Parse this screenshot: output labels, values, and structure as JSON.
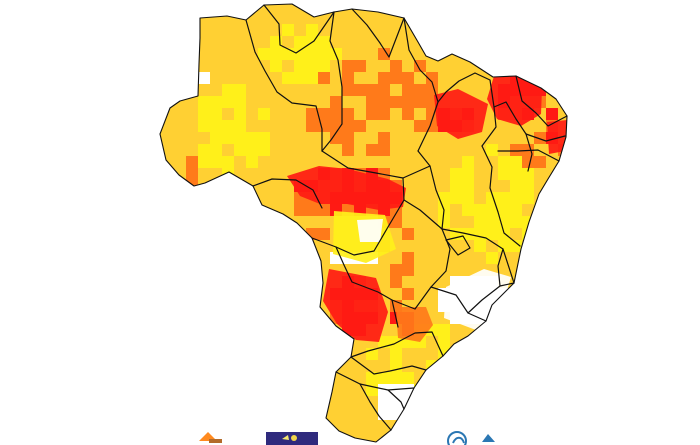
{
  "map": {
    "subject": "Brazil risk map",
    "colors": {
      "background": "#ffffff",
      "white": "#ffffff",
      "yellow": "#fff01a",
      "light_orange": "#ffd033",
      "orange": "#ff7a1a",
      "red": "#ff1a14",
      "border": "#111111"
    },
    "legend_visible": false
  },
  "footer": {
    "logos": [
      {
        "name": "left-logo",
        "shape": "orange-mark"
      },
      {
        "name": "center-logo",
        "shape": "navy-badge"
      },
      {
        "name": "right-logo",
        "shape": "blue-circle-mark"
      }
    ]
  }
}
